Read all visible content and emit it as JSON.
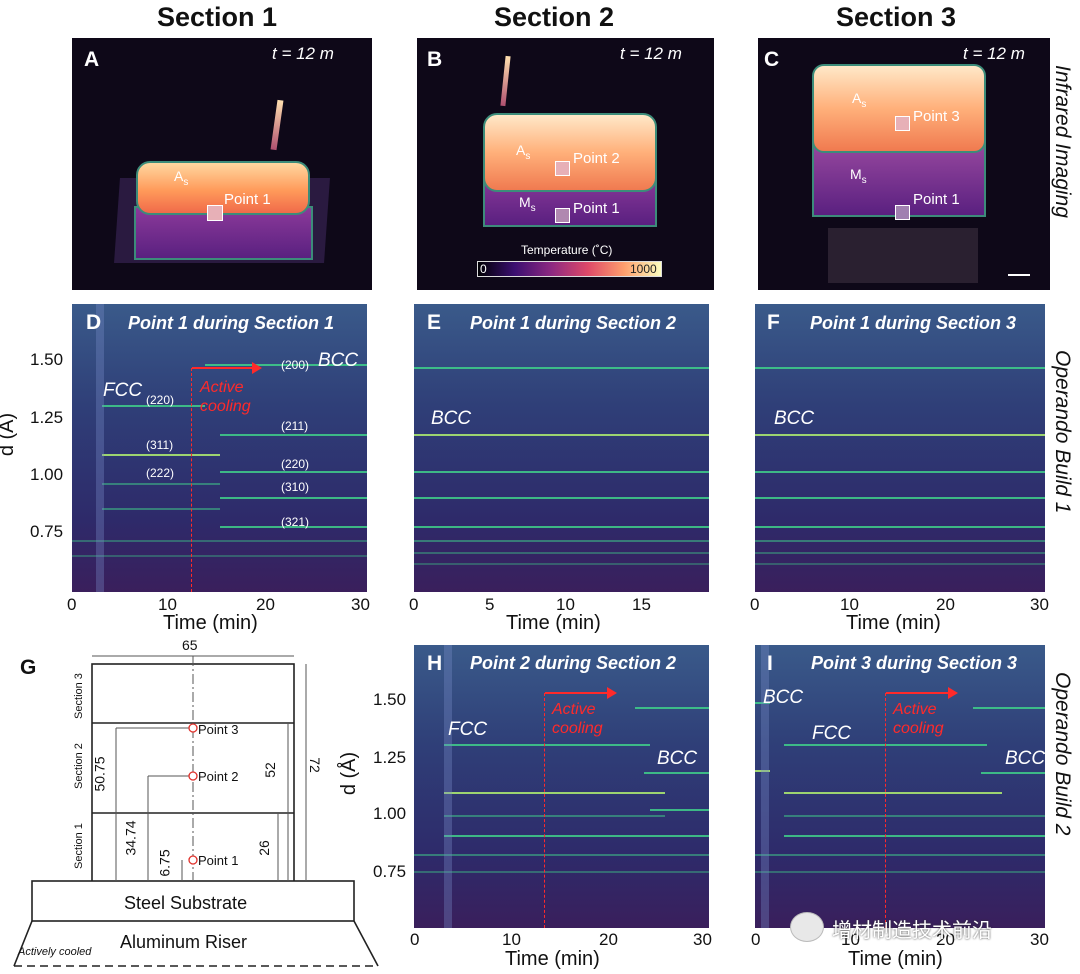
{
  "columns": [
    "Section 1",
    "Section 2",
    "Section 3"
  ],
  "side_labels": {
    "row1": "Infrared Imaging",
    "row2": "Operando Build 1",
    "row3": "Operando Build 2"
  },
  "panels": {
    "A": {
      "letter": "A",
      "time": "t = 12 m",
      "labels": [
        "A",
        "s",
        "Point 1"
      ]
    },
    "B": {
      "letter": "B",
      "time": "t = 12 m",
      "labels": [
        "A",
        "s",
        "Point 2",
        "M",
        "s",
        "Point 1"
      ],
      "colorbar": {
        "title": "Temperature (˚C)",
        "min": "0",
        "max": "1000"
      }
    },
    "C": {
      "letter": "C",
      "time": "t = 12 m",
      "labels": [
        "A",
        "s",
        "Point 3",
        "M",
        "s",
        "Point 1"
      ]
    },
    "D": {
      "letter": "D",
      "title": "Point 1 during Section 1"
    },
    "E": {
      "letter": "E",
      "title": "Point 1 during Section 2"
    },
    "F": {
      "letter": "F",
      "title": "Point 1 during Section 3"
    },
    "G": {
      "letter": "G"
    },
    "H": {
      "letter": "H",
      "title": "Point 2 during Section 2"
    },
    "I": {
      "letter": "I",
      "title": "Point 3 during Section 3"
    }
  },
  "annotations": {
    "fcc": "FCC",
    "bcc": "BCC",
    "active1": "Active",
    "active2": "cooling",
    "hkl": [
      "(200)",
      "(220)",
      "(211)",
      "(311)",
      "(220)",
      "(222)",
      "(310)",
      "(321)"
    ]
  },
  "schematic": {
    "width": "65",
    "height": "72",
    "d52": "52",
    "d26": "26",
    "d5075": "50.75",
    "d3474": "34.74",
    "d675": "6.75",
    "sections": [
      "Section 3",
      "Section 2",
      "Section 1"
    ],
    "points": [
      "Point 3",
      "Point 2",
      "Point 1"
    ],
    "substrate": "Steel Substrate",
    "riser": "Aluminum Riser",
    "cooled": "Actively cooled"
  },
  "watermark": "增材制造技术前沿",
  "chart_data": [
    {
      "type": "heatmap",
      "panel": "D",
      "title": "Point 1 during Section 1",
      "xlabel": "Time (min)",
      "ylabel": "d (Å)",
      "xlim": [
        0,
        30
      ],
      "ylim": [
        0.55,
        1.65
      ],
      "xticks": [
        0,
        10,
        20,
        30
      ],
      "yticks": [
        0.75,
        1.0,
        1.25,
        1.5
      ],
      "active_cooling_start_min": 12
    },
    {
      "type": "heatmap",
      "panel": "E",
      "title": "Point 1 during Section 2",
      "xlabel": "Time (min)",
      "xlim": [
        0,
        19
      ],
      "xticks": [
        0,
        5,
        10,
        15
      ]
    },
    {
      "type": "heatmap",
      "panel": "F",
      "title": "Point 1 during Section 3",
      "xlabel": "Time (min)",
      "xlim": [
        0,
        30
      ],
      "xticks": [
        0,
        10,
        20,
        30
      ]
    },
    {
      "type": "heatmap",
      "panel": "H",
      "title": "Point 2 during Section 2",
      "xlabel": "Time (min)",
      "ylabel": "d (Å)",
      "xlim": [
        0,
        30
      ],
      "ylim": [
        0.55,
        1.65
      ],
      "xticks": [
        0,
        10,
        20,
        30
      ],
      "yticks": [
        0.75,
        1.0,
        1.25,
        1.5
      ],
      "active_cooling_start_min": 13
    },
    {
      "type": "heatmap",
      "panel": "I",
      "title": "Point 3 during Section 3",
      "xlabel": "Time (min)",
      "xlim": [
        0,
        30
      ],
      "xticks": [
        0,
        10,
        20,
        30
      ],
      "active_cooling_start_min": 13
    }
  ],
  "axes": {
    "d_title": "d (Å)",
    "time_title": "Time (min)",
    "yticks": [
      "1.50",
      "1.25",
      "1.00",
      "0.75"
    ],
    "x30": [
      "0",
      "10",
      "20",
      "30"
    ],
    "x19": [
      "0",
      "5",
      "10",
      "15"
    ]
  }
}
